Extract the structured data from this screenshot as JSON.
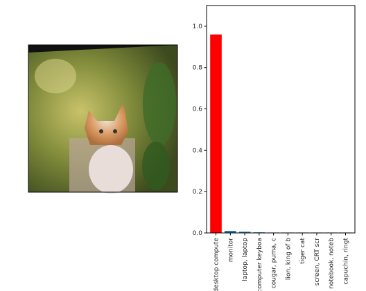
{
  "chart_data": {
    "type": "bar",
    "categories": [
      "desktop compute",
      "monitor",
      "laptop, laptop",
      "computer keyboa",
      "cougar, puma, c",
      "lion, king of b",
      "tiger cat",
      "screen, CRT scr",
      "notebook, noteb",
      "capuchin, ringt"
    ],
    "values": [
      0.96,
      0.01,
      0.006,
      0.003,
      0.002,
      0.002,
      0.002,
      0.002,
      0.002,
      0.002
    ],
    "colors": [
      "#ff0000",
      "#1f77b4",
      "#1f77b4",
      "#1f77b4",
      "#1f77b4",
      "#1f77b4",
      "#1f77b4",
      "#1f77b4",
      "#1f77b4",
      "#1f77b4"
    ],
    "ylim": [
      0,
      1.1
    ],
    "yticks": [
      {
        "value": 0,
        "label": "0.0"
      },
      {
        "value": 0.2,
        "label": "0.2"
      },
      {
        "value": 0.4,
        "label": "0.4"
      },
      {
        "value": 0.6,
        "label": "0.6"
      },
      {
        "value": 0.8,
        "label": "0.8"
      },
      {
        "value": 1,
        "label": "1.0"
      }
    ]
  }
}
